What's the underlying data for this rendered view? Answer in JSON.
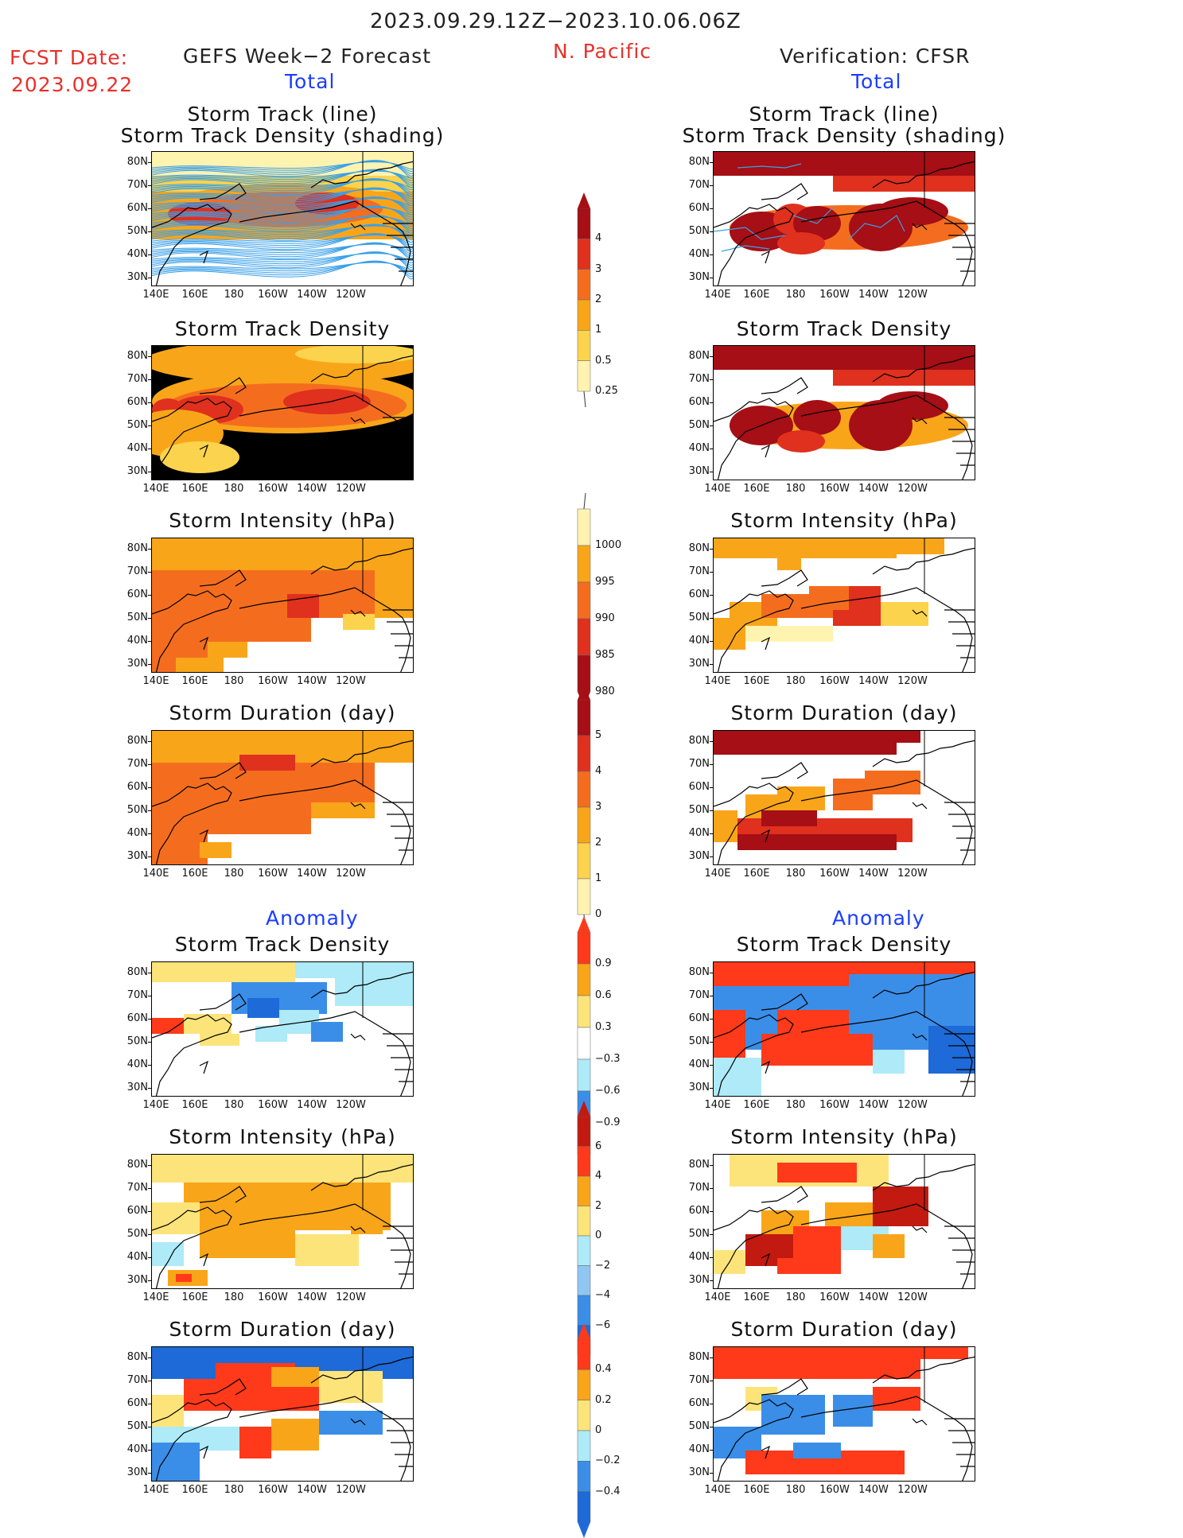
{
  "header": {
    "period": "2023.09.29.12Z−2023.10.06.06Z",
    "fcst_label": "FCST Date:",
    "fcst_date": "2023.09.22",
    "left_title": "GEFS Week−2 Forecast",
    "region": "N. Pacific",
    "right_title": "Verification: CFSR",
    "total_left": "Total",
    "total_right": "Total",
    "anomaly_left": "Anomaly",
    "anomaly_right": "Anomaly"
  },
  "panel_titles": {
    "track_line": "Storm Track (line)",
    "track_shading": "Storm Track Density (shading)",
    "density": "Storm Track Density",
    "intensity": "Storm Intensity (hPa)",
    "duration": "Storm Duration (day)"
  },
  "axes": {
    "lat": [
      "80N",
      "70N",
      "60N",
      "50N",
      "40N",
      "30N"
    ],
    "lon": [
      "140E",
      "160E",
      "180",
      "160W",
      "140W",
      "120W"
    ]
  },
  "colorbars": {
    "density": {
      "labels": [
        "4",
        "3",
        "2",
        "1",
        "0.5",
        "0.25"
      ],
      "colors": [
        "#a50f15",
        "#e0301e",
        "#f46d1f",
        "#f9a51a",
        "#fcd34d",
        "#fff3b0"
      ]
    },
    "intensity": {
      "labels": [
        "1000",
        "995",
        "990",
        "985",
        "980"
      ],
      "colors": [
        "#fff3b0",
        "#f9a51a",
        "#f46d1f",
        "#e0301e",
        "#a50f15"
      ]
    },
    "duration": {
      "labels": [
        "5",
        "4",
        "3",
        "2",
        "1",
        "0"
      ],
      "colors": [
        "#a50f15",
        "#e0301e",
        "#f46d1f",
        "#f9a51a",
        "#fcd34d",
        "#fff3b0"
      ]
    },
    "anom_density": {
      "labels": [
        "0.9",
        "0.6",
        "0.3",
        "−0.3",
        "−0.6",
        "−0.9"
      ],
      "colors": [
        "#ff3a1a",
        "#f9a51a",
        "#fde47a",
        "#ffffff",
        "#aeeaf7",
        "#3a8ee8",
        "#1e6ad8"
      ]
    },
    "anom_intensity": {
      "labels": [
        "6",
        "4",
        "2",
        "0",
        "−2",
        "−4",
        "−6"
      ],
      "colors": [
        "#c21a10",
        "#ff3a1a",
        "#f9a51a",
        "#fde47a",
        "#aeeaf7",
        "#8fc6f2",
        "#3a8ee8",
        "#1e6ad8"
      ]
    },
    "anom_duration": {
      "labels": [
        "0.4",
        "0.2",
        "0",
        "−0.2",
        "−0.4"
      ],
      "colors": [
        "#ff3a1a",
        "#f9a51a",
        "#fde47a",
        "#aeeaf7",
        "#3a8ee8",
        "#1e6ad8"
      ]
    }
  }
}
